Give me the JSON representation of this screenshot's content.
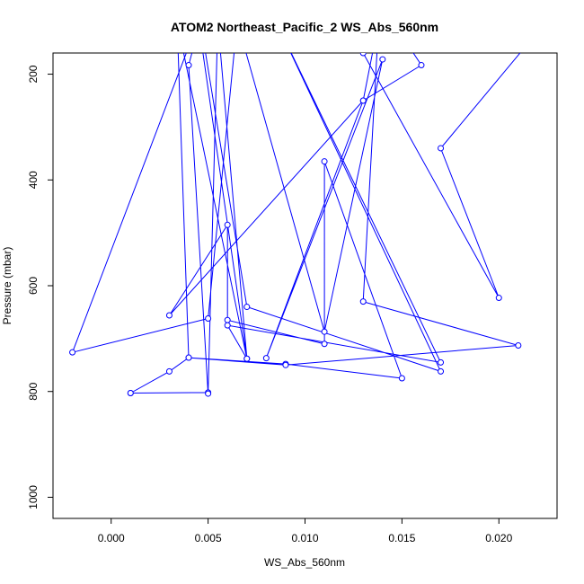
{
  "chart_data": {
    "type": "line",
    "title": "ATOM2 Northeast_Pacific_2 WS_Abs_560nm",
    "xlabel": "WS_Abs_560nm",
    "ylabel": "Pressure (mbar)",
    "xlim": [
      -0.003,
      0.023
    ],
    "ylim": [
      1040,
      160
    ],
    "y_inverted": true,
    "xticks": [
      0.0,
      0.005,
      0.01,
      0.015,
      0.02
    ],
    "xtick_labels": [
      "0.000",
      "0.005",
      "0.010",
      "0.015",
      "0.020"
    ],
    "yticks": [
      200,
      400,
      600,
      800,
      1000
    ],
    "ytick_labels": [
      "200",
      "400",
      "600",
      "800",
      "1000"
    ],
    "grid": false,
    "series_color": "#0000ff",
    "series": [
      {
        "points": [
          {
            "x": 0.001,
            "y": 803
          },
          {
            "x": 0.005,
            "y": 802
          },
          {
            "x": 0.001,
            "y": 803
          },
          {
            "x": 0.003,
            "y": 762
          },
          {
            "x": 0.004,
            "y": 736
          },
          {
            "x": 0.009,
            "y": 748
          },
          {
            "x": 0.015,
            "y": 775
          },
          {
            "x": 0.011,
            "y": 365
          },
          {
            "x": 0.011,
            "y": 710
          },
          {
            "x": 0.006,
            "y": 665
          },
          {
            "x": 0.006,
            "y": 485
          },
          {
            "x": 0.003,
            "y": 656
          },
          {
            "x": 0.013,
            "y": 250
          },
          {
            "x": 0.008,
            "y": 737
          },
          {
            "x": 0.014,
            "y": 172
          },
          {
            "x": 0.011,
            "y": 687
          },
          {
            "x": 0.0065,
            "y": 100
          },
          {
            "x": 0.005,
            "y": 662
          },
          {
            "x": -0.002,
            "y": 726
          },
          {
            "x": 0.0045,
            "y": 100
          },
          {
            "x": 0.007,
            "y": 738
          },
          {
            "x": 0.006,
            "y": 675
          },
          {
            "x": 0.017,
            "y": 745
          },
          {
            "x": 0.0085,
            "y": 100
          },
          {
            "x": 0.017,
            "y": 762
          },
          {
            "x": 0.007,
            "y": 640
          },
          {
            "x": 0.0046,
            "y": 100
          },
          {
            "x": 0.004,
            "y": 183
          },
          {
            "x": 0.005,
            "y": 804
          },
          {
            "x": 0.0055,
            "y": 100
          },
          {
            "x": 0.007,
            "y": 738
          },
          {
            "x": 0.0034,
            "y": 100
          },
          {
            "x": 0.004,
            "y": 736
          },
          {
            "x": 0.009,
            "y": 750
          },
          {
            "x": 0.021,
            "y": 713
          },
          {
            "x": 0.013,
            "y": 630
          },
          {
            "x": 0.0138,
            "y": 100
          },
          {
            "x": 0.013,
            "y": 250
          },
          {
            "x": 0.016,
            "y": 183
          },
          {
            "x": 0.0145,
            "y": 100
          },
          {
            "x": 0.013,
            "y": 160
          },
          {
            "x": 0.02,
            "y": 623
          },
          {
            "x": 0.017,
            "y": 340
          },
          {
            "x": 0.022,
            "y": 120
          }
        ]
      }
    ]
  }
}
